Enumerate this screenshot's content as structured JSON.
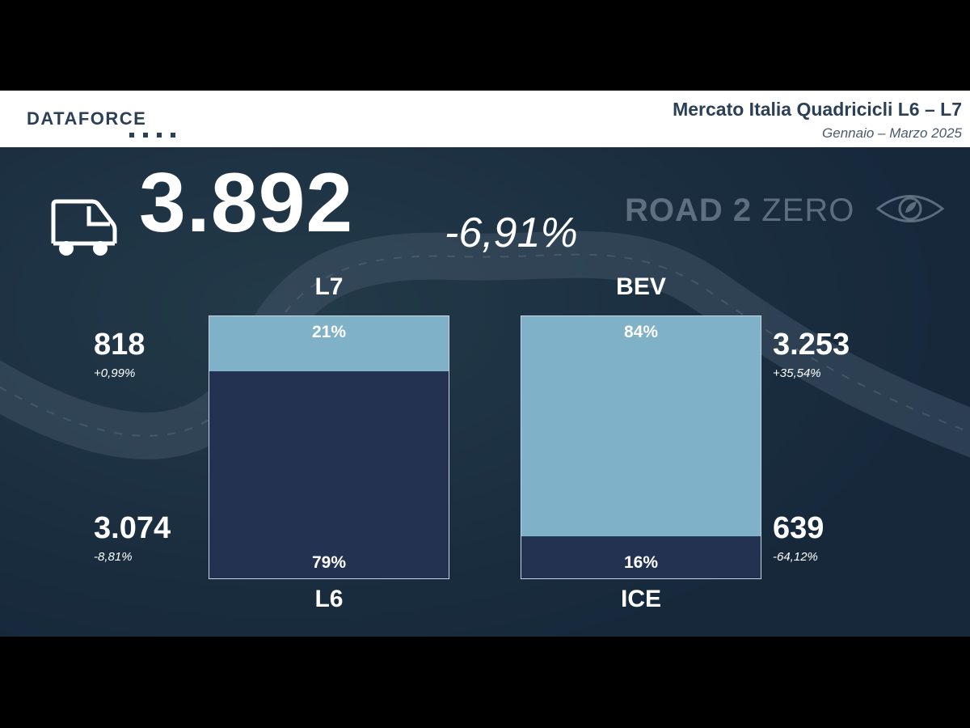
{
  "header": {
    "logo_text": "DATAFORCE",
    "title": "Mercato Italia Quadricicli L6 – L7",
    "subtitle": "Gennaio – Marzo 2025"
  },
  "kpi": {
    "total": "3.892",
    "change": "-6,91%",
    "icon": "van-icon"
  },
  "brand": {
    "road_text": "ROAD 2",
    "zero_text": "ZERO",
    "icon": "eye-leaf-icon"
  },
  "colors": {
    "light": "#7fb1c8",
    "dark": "#233250",
    "header_text": "#2b3f57"
  },
  "chart_data": [
    {
      "type": "bar",
      "stacked": true,
      "categories": [
        "L6",
        "L7"
      ],
      "values": [
        79,
        21
      ],
      "labels": [
        "79%",
        "21%"
      ],
      "segment_colors": [
        "#233250",
        "#7fb1c8"
      ],
      "top_label": "L7",
      "bottom_label": "L6",
      "top_stat": {
        "value": "818",
        "change": "+0,99%"
      },
      "bottom_stat": {
        "value": "3.074",
        "change": "-8,81%"
      }
    },
    {
      "type": "bar",
      "stacked": true,
      "categories": [
        "ICE",
        "BEV"
      ],
      "values": [
        16,
        84
      ],
      "labels": [
        "16%",
        "84%"
      ],
      "segment_colors": [
        "#233250",
        "#7fb1c8"
      ],
      "top_label": "BEV",
      "bottom_label": "ICE",
      "top_stat": {
        "value": "3.253",
        "change": "+35,54%"
      },
      "bottom_stat": {
        "value": "639",
        "change": "-64,12%"
      }
    }
  ]
}
